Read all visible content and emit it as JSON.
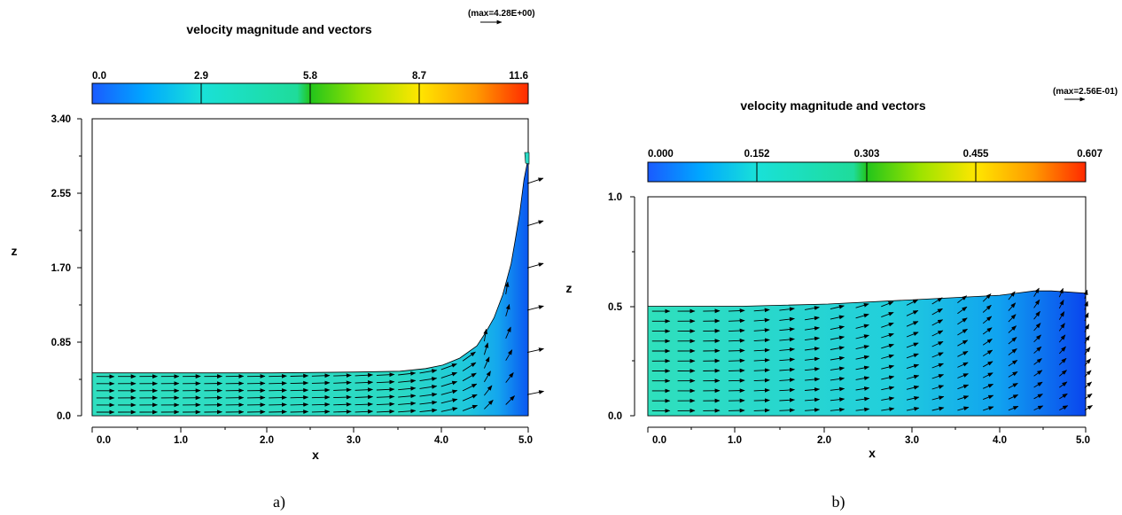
{
  "chart_data": [
    {
      "type": "vector field",
      "title": "velocity magnitude and vectors",
      "max_note": "(max=4.28E+00)",
      "xlabel": "x",
      "ylabel": "z",
      "colorbar": {
        "ticks": [
          "0.0",
          "2.9",
          "5.8",
          "8.7",
          "11.6"
        ],
        "range": [
          0.0,
          11.6
        ]
      },
      "x_ticks": [
        "0.0",
        "1.0",
        "2.0",
        "3.0",
        "4.0",
        "5.0"
      ],
      "z_ticks": [
        "0.0",
        "0.85",
        "1.70",
        "2.55",
        "3.40"
      ],
      "xlim": [
        -0.1,
        5.0
      ],
      "zlim": [
        0.0,
        3.4
      ],
      "surface": {
        "x": [
          -0.1,
          1.0,
          2.0,
          3.0,
          3.5,
          3.8,
          4.0,
          4.2,
          4.4,
          4.5,
          4.6,
          4.7,
          4.8,
          4.85,
          4.9,
          4.95,
          5.0
        ],
        "z": [
          0.49,
          0.49,
          0.49,
          0.5,
          0.51,
          0.54,
          0.58,
          0.66,
          0.8,
          0.95,
          1.12,
          1.38,
          1.74,
          2.02,
          2.32,
          2.7,
          2.95
        ]
      },
      "caption": "a)"
    },
    {
      "type": "vector field",
      "title": "velocity magnitude and vectors",
      "max_note": "(max=2.56E-01)",
      "xlabel": "x",
      "ylabel": "z",
      "colorbar": {
        "ticks": [
          "0.000",
          "0.152",
          "0.303",
          "0.455",
          "0.607"
        ],
        "range": [
          0.0,
          0.607
        ]
      },
      "x_ticks": [
        "0.0",
        "1.0",
        "2.0",
        "3.0",
        "4.0",
        "5.0"
      ],
      "z_ticks": [
        "0.0",
        "0.5",
        "1.0"
      ],
      "xlim": [
        -0.1,
        5.0
      ],
      "zlim": [
        0.0,
        1.0
      ],
      "surface": {
        "x": [
          -0.1,
          1.0,
          2.0,
          3.0,
          4.0,
          4.4,
          4.6,
          5.0
        ],
        "z": [
          0.5,
          0.5,
          0.51,
          0.53,
          0.55,
          0.57,
          0.57,
          0.56
        ]
      },
      "caption": "b)"
    }
  ]
}
